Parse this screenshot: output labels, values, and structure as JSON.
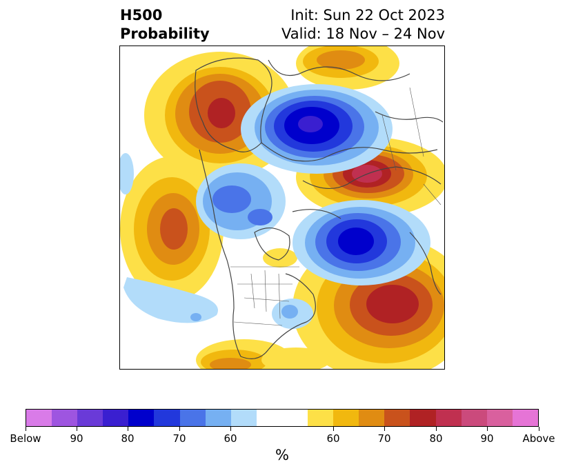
{
  "title": {
    "left_line1": "H500",
    "left_line2": "Probability",
    "right_line1": "Init: Sun 22 Oct 2023",
    "right_line2": "Valid: 18 Nov – 24 Nov"
  },
  "map": {
    "projection": "polar stereographic, North America / Arctic"
  },
  "colorbar": {
    "units": "%",
    "colors": [
      "#d97be8",
      "#9e55e0",
      "#6a3ad8",
      "#3a1fd0",
      "#0000cc",
      "#2238dc",
      "#4a74e8",
      "#76b0f2",
      "#b2dcfa",
      "#ffffff",
      "#ffffff",
      "#fde047",
      "#f1b80f",
      "#e08c12",
      "#c9521c",
      "#b02224",
      "#c03050",
      "#cb4a7c",
      "#d9609e",
      "#e674d6"
    ],
    "tick_labels": [
      "Below",
      "90",
      "80",
      "70",
      "60",
      "60",
      "70",
      "80",
      "90",
      "Above"
    ]
  }
}
